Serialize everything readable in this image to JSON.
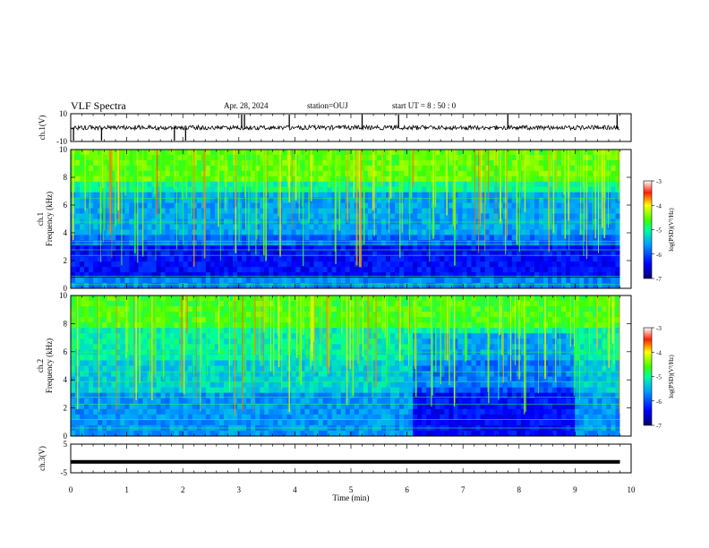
{
  "header": {
    "title": "VLF Spectra",
    "date": "Apr. 28, 2024",
    "station": "station=OUJ",
    "start": "start  UT =   8  : 50 : 0"
  },
  "chart_data": [
    {
      "type": "line",
      "panel": "ch1-waveform",
      "ylabel": "ch.1(V)",
      "ylim": [
        -10,
        10
      ],
      "yticks": [
        "10",
        "-10"
      ],
      "xlim": [
        0,
        10
      ],
      "baseline": 0,
      "spikes_x": [
        0.05,
        0.55,
        1.85,
        2.05,
        3.05,
        3.1,
        3.9,
        5.2,
        5.85,
        7.8,
        9.75
      ]
    },
    {
      "type": "heatmap",
      "panel": "ch1-spectrogram",
      "ylabel": "ch.1 Frequency (kHz)",
      "ylim": [
        0,
        10
      ],
      "yticks": [
        "0",
        "2",
        "4",
        "6",
        "8",
        "10"
      ],
      "xlim": [
        0,
        10
      ],
      "colorbar": {
        "label": "log(PSD)(V²/Hz)",
        "ticks": [
          "-3",
          "-4",
          "-5",
          "-6",
          "-7"
        ],
        "range": [
          -7,
          -3
        ]
      }
    },
    {
      "type": "heatmap",
      "panel": "ch2-spectrogram",
      "ylabel": "ch.2 Frequency (kHz)",
      "ylim": [
        0,
        10
      ],
      "yticks": [
        "0",
        "2",
        "4",
        "6",
        "8",
        "10"
      ],
      "xlim": [
        0,
        10
      ],
      "quiet_interval_min": [
        6.1,
        9.0
      ],
      "colorbar": {
        "label": "log(PSD)(V²/Hz)",
        "ticks": [
          "-3",
          "-4",
          "-5",
          "-6",
          "-7"
        ],
        "range": [
          -7,
          -3
        ]
      }
    },
    {
      "type": "line",
      "panel": "ch3-waveform",
      "ylabel": "ch.3(V)",
      "ylim": [
        -5,
        5
      ],
      "yticks": [
        "5",
        "-5"
      ],
      "xlim": [
        0,
        10
      ],
      "constant_value": -1.2
    }
  ],
  "xaxis": {
    "label": "Time (min)",
    "ticks": [
      "0",
      "1",
      "2",
      "3",
      "4",
      "5",
      "6",
      "7",
      "8",
      "9",
      "10"
    ]
  },
  "colors": {
    "colormap": [
      "#000080",
      "#0000ff",
      "#0080ff",
      "#00ffff",
      "#00ff80",
      "#80ff00",
      "#ffff00",
      "#ff8000",
      "#ff0000",
      "#ffffff"
    ]
  }
}
